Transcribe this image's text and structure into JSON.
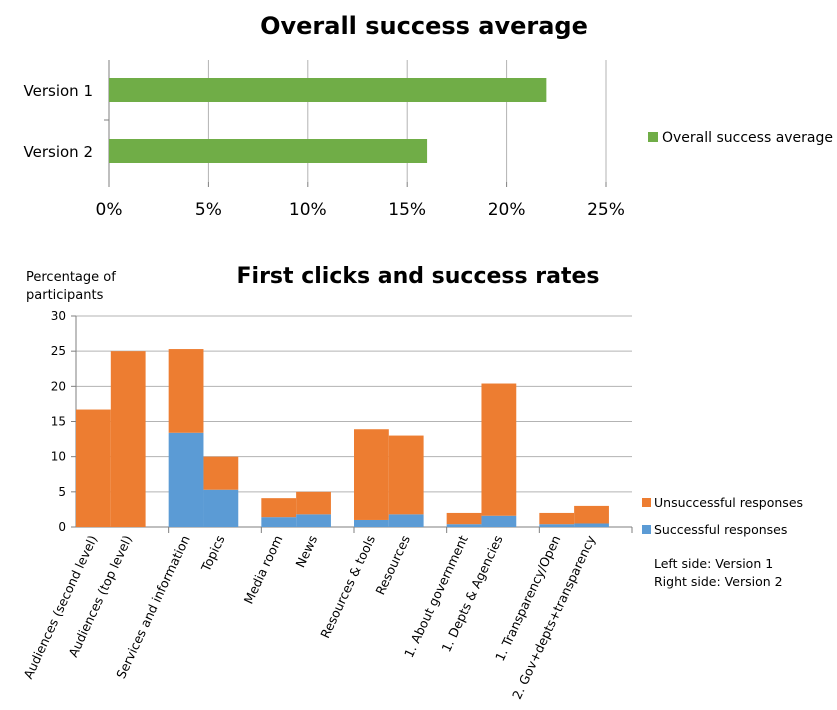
{
  "colors": {
    "green": "#70AD47",
    "orange": "#ED7D31",
    "blue": "#5B9BD5",
    "grid": "#B3B3B3",
    "axis": "#7F7F7F"
  },
  "chart_data": [
    {
      "type": "bar",
      "orientation": "horizontal",
      "title": "Overall success average",
      "categories": [
        "Version 1",
        "Version 2"
      ],
      "series": [
        {
          "name": "Overall success average",
          "values": [
            22,
            16
          ]
        }
      ],
      "xlim": [
        0,
        25
      ],
      "xticks": [
        "0%",
        "5%",
        "10%",
        "15%",
        "20%",
        "25%"
      ],
      "grid": "vertical",
      "legend": "right"
    },
    {
      "type": "bar",
      "stacked": true,
      "title": "First clicks and success rates",
      "ylabel": "Percentage of participants",
      "ylim": [
        0,
        30
      ],
      "yticks": [
        "0",
        "5",
        "10",
        "15",
        "20",
        "25",
        "30"
      ],
      "categories": [
        "Audiences (second level)",
        "Audiences (top level)",
        "Services and information",
        "Topics",
        "Media room",
        "News",
        "Resources & tools",
        "Resources",
        "1. About government",
        "1. Depts & Agencies",
        "1. Transparency/Open",
        "2. Gov+depts+transparency"
      ],
      "series": [
        {
          "name": "Successful responses",
          "values": [
            0,
            0,
            13.4,
            5.3,
            1.4,
            1.8,
            1.0,
            1.8,
            0.4,
            1.6,
            0.4,
            0.5
          ]
        },
        {
          "name": "Unsuccessful responses",
          "values": [
            16.7,
            25.0,
            11.9,
            4.7,
            2.7,
            3.2,
            12.9,
            11.2,
            1.6,
            18.8,
            1.6,
            2.5
          ]
        }
      ],
      "legend": "right",
      "note": [
        "Left side: Version 1",
        "Right side: Version 2"
      ]
    }
  ]
}
